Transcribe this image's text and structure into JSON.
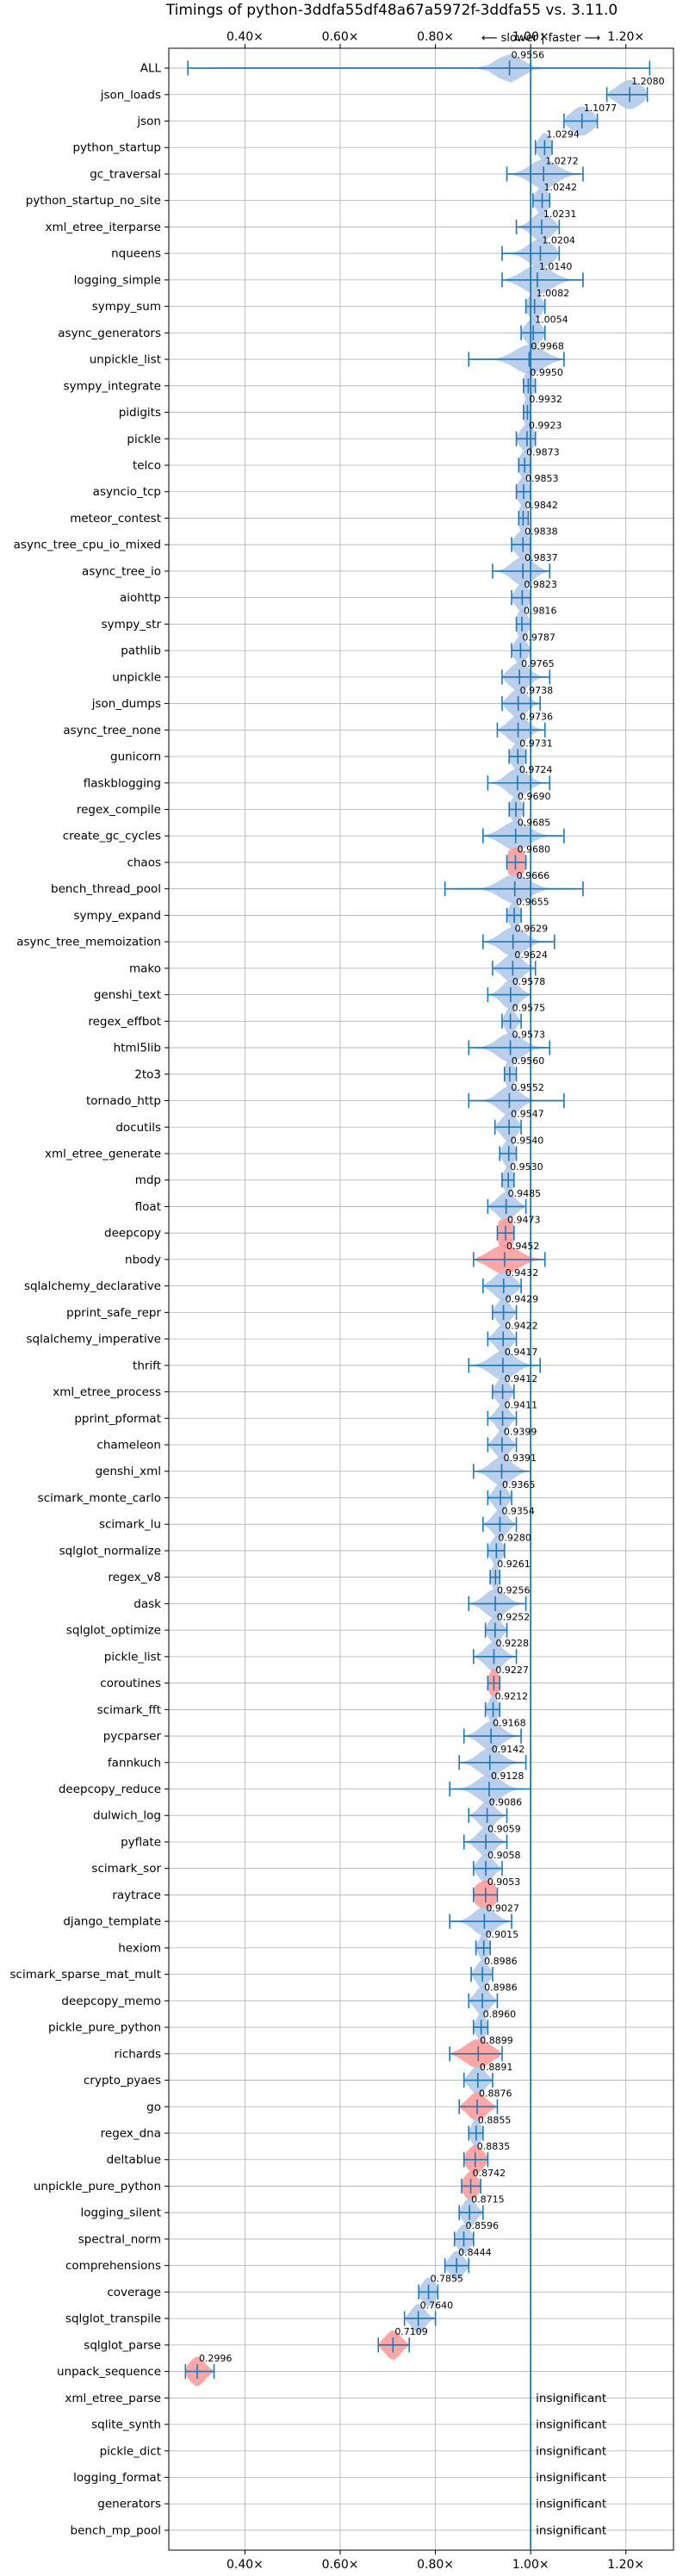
{
  "chart_data": {
    "type": "violin",
    "title": "Timings of python-3ddfa55df48a67a5972f-3ddfa55 vs. 3.11.0",
    "direction_label": "⟵ slower | faster ⟶",
    "xlim": [
      0.24,
      1.3
    ],
    "x_ticks": [
      {
        "value": 0.4,
        "label": "0.40×"
      },
      {
        "value": 0.6,
        "label": "0.60×"
      },
      {
        "value": 0.8,
        "label": "0.80×"
      },
      {
        "value": 1.0,
        "label": "1.00×"
      },
      {
        "value": 1.2,
        "label": "1.20×"
      }
    ],
    "reference_line": 1.0,
    "grid": true,
    "colors": {
      "normal": "#1f77b4",
      "normal_fill": "#aec7e8",
      "flagged_fill": "#ff9896",
      "grid": "#b0b0b0"
    },
    "insignificant_text": "insignificant",
    "benchmarks": [
      {
        "name": "ALL",
        "value": 0.9556,
        "label": "0.9556",
        "min": 0.28,
        "max": 1.25,
        "spread": 0.025,
        "flagged": false
      },
      {
        "name": "json_loads",
        "value": 1.208,
        "label": "1.2080",
        "min": 1.16,
        "max": 1.245,
        "spread": 0.025,
        "flagged": false
      },
      {
        "name": "json",
        "value": 1.1077,
        "label": "1.1077",
        "min": 1.07,
        "max": 1.14,
        "spread": 0.022,
        "flagged": false
      },
      {
        "name": "python_startup",
        "value": 1.0294,
        "label": "1.0294",
        "min": 1.01,
        "max": 1.045,
        "spread": 0.012,
        "flagged": false
      },
      {
        "name": "gc_traversal",
        "value": 1.0272,
        "label": "1.0272",
        "min": 0.95,
        "max": 1.11,
        "spread": 0.028,
        "flagged": false
      },
      {
        "name": "python_startup_no_site",
        "value": 1.0242,
        "label": "1.0242",
        "min": 1.005,
        "max": 1.04,
        "spread": 0.012,
        "flagged": false
      },
      {
        "name": "xml_etree_iterparse",
        "value": 1.0231,
        "label": "1.0231",
        "min": 0.97,
        "max": 1.06,
        "spread": 0.02,
        "flagged": false
      },
      {
        "name": "nqueens",
        "value": 1.0204,
        "label": "1.0204",
        "min": 0.94,
        "max": 1.06,
        "spread": 0.025,
        "flagged": false
      },
      {
        "name": "logging_simple",
        "value": 1.014,
        "label": "1.0140",
        "min": 0.94,
        "max": 1.11,
        "spread": 0.03,
        "flagged": false
      },
      {
        "name": "sympy_sum",
        "value": 1.0082,
        "label": "1.0082",
        "min": 0.99,
        "max": 1.03,
        "spread": 0.013,
        "flagged": false
      },
      {
        "name": "async_generators",
        "value": 1.0054,
        "label": "1.0054",
        "min": 0.98,
        "max": 1.03,
        "spread": 0.015,
        "flagged": false
      },
      {
        "name": "unpickle_list",
        "value": 0.9968,
        "label": "0.9968",
        "min": 0.87,
        "max": 1.07,
        "spread": 0.03,
        "flagged": false
      },
      {
        "name": "sympy_integrate",
        "value": 0.995,
        "label": "0.9950",
        "min": 0.985,
        "max": 1.01,
        "spread": 0.01,
        "flagged": false
      },
      {
        "name": "pidigits",
        "value": 0.9932,
        "label": "0.9932",
        "min": 0.985,
        "max": 1.0,
        "spread": 0.008,
        "flagged": false
      },
      {
        "name": "pickle",
        "value": 0.9923,
        "label": "0.9923",
        "min": 0.97,
        "max": 1.01,
        "spread": 0.013,
        "flagged": false
      },
      {
        "name": "telco",
        "value": 0.9873,
        "label": "0.9873",
        "min": 0.975,
        "max": 1.0,
        "spread": 0.01,
        "flagged": false
      },
      {
        "name": "asyncio_tcp",
        "value": 0.9853,
        "label": "0.9853",
        "min": 0.97,
        "max": 1.0,
        "spread": 0.012,
        "flagged": false
      },
      {
        "name": "meteor_contest",
        "value": 0.9842,
        "label": "0.9842",
        "min": 0.975,
        "max": 0.995,
        "spread": 0.009,
        "flagged": false
      },
      {
        "name": "async_tree_cpu_io_mixed",
        "value": 0.9838,
        "label": "0.9838",
        "min": 0.96,
        "max": 1.0,
        "spread": 0.015,
        "flagged": false
      },
      {
        "name": "async_tree_io",
        "value": 0.9837,
        "label": "0.9837",
        "min": 0.92,
        "max": 1.04,
        "spread": 0.022,
        "flagged": false
      },
      {
        "name": "aiohttp",
        "value": 0.9823,
        "label": "0.9823",
        "min": 0.96,
        "max": 1.0,
        "spread": 0.013,
        "flagged": false
      },
      {
        "name": "sympy_str",
        "value": 0.9816,
        "label": "0.9816",
        "min": 0.97,
        "max": 1.0,
        "spread": 0.011,
        "flagged": false
      },
      {
        "name": "pathlib",
        "value": 0.9787,
        "label": "0.9787",
        "min": 0.96,
        "max": 1.0,
        "spread": 0.012,
        "flagged": false
      },
      {
        "name": "unpickle",
        "value": 0.9765,
        "label": "0.9765",
        "min": 0.94,
        "max": 1.04,
        "spread": 0.02,
        "flagged": false
      },
      {
        "name": "json_dumps",
        "value": 0.9738,
        "label": "0.9738",
        "min": 0.94,
        "max": 1.02,
        "spread": 0.018,
        "flagged": false
      },
      {
        "name": "async_tree_none",
        "value": 0.9736,
        "label": "0.9736",
        "min": 0.93,
        "max": 1.03,
        "spread": 0.02,
        "flagged": false
      },
      {
        "name": "gunicorn",
        "value": 0.9731,
        "label": "0.9731",
        "min": 0.955,
        "max": 0.99,
        "spread": 0.012,
        "flagged": false
      },
      {
        "name": "flaskblogging",
        "value": 0.9724,
        "label": "0.9724",
        "min": 0.91,
        "max": 1.04,
        "spread": 0.022,
        "flagged": false
      },
      {
        "name": "regex_compile",
        "value": 0.969,
        "label": "0.9690",
        "min": 0.955,
        "max": 0.985,
        "spread": 0.01,
        "flagged": false
      },
      {
        "name": "create_gc_cycles",
        "value": 0.9685,
        "label": "0.9685",
        "min": 0.9,
        "max": 1.07,
        "spread": 0.028,
        "flagged": false
      },
      {
        "name": "chaos",
        "value": 0.968,
        "label": "0.9680",
        "min": 0.95,
        "max": 0.99,
        "spread": 0.022,
        "flagged": true
      },
      {
        "name": "bench_thread_pool",
        "value": 0.9666,
        "label": "0.9666",
        "min": 0.82,
        "max": 1.11,
        "spread": 0.03,
        "flagged": false
      },
      {
        "name": "sympy_expand",
        "value": 0.9655,
        "label": "0.9655",
        "min": 0.95,
        "max": 0.98,
        "spread": 0.01,
        "flagged": false
      },
      {
        "name": "async_tree_memoization",
        "value": 0.9629,
        "label": "0.9629",
        "min": 0.9,
        "max": 1.05,
        "spread": 0.025,
        "flagged": false
      },
      {
        "name": "mako",
        "value": 0.9624,
        "label": "0.9624",
        "min": 0.92,
        "max": 1.01,
        "spread": 0.02,
        "flagged": false
      },
      {
        "name": "genshi_text",
        "value": 0.9578,
        "label": "0.9578",
        "min": 0.91,
        "max": 1.0,
        "spread": 0.018,
        "flagged": false
      },
      {
        "name": "regex_effbot",
        "value": 0.9575,
        "label": "0.9575",
        "min": 0.94,
        "max": 0.98,
        "spread": 0.01,
        "flagged": false
      },
      {
        "name": "html5lib",
        "value": 0.9573,
        "label": "0.9573",
        "min": 0.87,
        "max": 1.04,
        "spread": 0.026,
        "flagged": false
      },
      {
        "name": "2to3",
        "value": 0.956,
        "label": "0.9560",
        "min": 0.945,
        "max": 0.97,
        "spread": 0.009,
        "flagged": false
      },
      {
        "name": "tornado_http",
        "value": 0.9552,
        "label": "0.9552",
        "min": 0.87,
        "max": 1.07,
        "spread": 0.022,
        "flagged": false
      },
      {
        "name": "docutils",
        "value": 0.9547,
        "label": "0.9547",
        "min": 0.925,
        "max": 0.98,
        "spread": 0.015,
        "flagged": false
      },
      {
        "name": "xml_etree_generate",
        "value": 0.954,
        "label": "0.9540",
        "min": 0.935,
        "max": 0.97,
        "spread": 0.011,
        "flagged": false
      },
      {
        "name": "mdp",
        "value": 0.953,
        "label": "0.9530",
        "min": 0.94,
        "max": 0.965,
        "spread": 0.009,
        "flagged": false
      },
      {
        "name": "float",
        "value": 0.9485,
        "label": "0.9485",
        "min": 0.91,
        "max": 0.99,
        "spread": 0.018,
        "flagged": false
      },
      {
        "name": "deepcopy",
        "value": 0.9473,
        "label": "0.9473",
        "min": 0.93,
        "max": 0.965,
        "spread": 0.022,
        "flagged": true
      },
      {
        "name": "nbody",
        "value": 0.9452,
        "label": "0.9452",
        "min": 0.88,
        "max": 1.03,
        "spread": 0.03,
        "flagged": true
      },
      {
        "name": "sqlalchemy_declarative",
        "value": 0.9432,
        "label": "0.9432",
        "min": 0.9,
        "max": 0.98,
        "spread": 0.02,
        "flagged": false
      },
      {
        "name": "pprint_safe_repr",
        "value": 0.9429,
        "label": "0.9429",
        "min": 0.92,
        "max": 0.97,
        "spread": 0.013,
        "flagged": false
      },
      {
        "name": "sqlalchemy_imperative",
        "value": 0.9422,
        "label": "0.9422",
        "min": 0.91,
        "max": 0.97,
        "spread": 0.015,
        "flagged": false
      },
      {
        "name": "thrift",
        "value": 0.9417,
        "label": "0.9417",
        "min": 0.87,
        "max": 1.02,
        "spread": 0.025,
        "flagged": false
      },
      {
        "name": "xml_etree_process",
        "value": 0.9412,
        "label": "0.9412",
        "min": 0.92,
        "max": 0.965,
        "spread": 0.013,
        "flagged": false
      },
      {
        "name": "pprint_pformat",
        "value": 0.9411,
        "label": "0.9411",
        "min": 0.91,
        "max": 0.97,
        "spread": 0.013,
        "flagged": false
      },
      {
        "name": "chameleon",
        "value": 0.9399,
        "label": "0.9399",
        "min": 0.91,
        "max": 0.97,
        "spread": 0.014,
        "flagged": false
      },
      {
        "name": "genshi_xml",
        "value": 0.9391,
        "label": "0.9391",
        "min": 0.88,
        "max": 1.0,
        "spread": 0.022,
        "flagged": false
      },
      {
        "name": "scimark_monte_carlo",
        "value": 0.9365,
        "label": "0.9365",
        "min": 0.91,
        "max": 0.96,
        "spread": 0.013,
        "flagged": false
      },
      {
        "name": "scimark_lu",
        "value": 0.9354,
        "label": "0.9354",
        "min": 0.9,
        "max": 0.97,
        "spread": 0.015,
        "flagged": false
      },
      {
        "name": "sqlglot_normalize",
        "value": 0.928,
        "label": "0.9280",
        "min": 0.91,
        "max": 0.945,
        "spread": 0.011,
        "flagged": false
      },
      {
        "name": "regex_v8",
        "value": 0.9261,
        "label": "0.9261",
        "min": 0.915,
        "max": 0.935,
        "spread": 0.007,
        "flagged": false
      },
      {
        "name": "dask",
        "value": 0.9256,
        "label": "0.9256",
        "min": 0.87,
        "max": 0.99,
        "spread": 0.022,
        "flagged": false
      },
      {
        "name": "sqlglot_optimize",
        "value": 0.9252,
        "label": "0.9252",
        "min": 0.905,
        "max": 0.95,
        "spread": 0.012,
        "flagged": false
      },
      {
        "name": "pickle_list",
        "value": 0.9228,
        "label": "0.9228",
        "min": 0.88,
        "max": 0.97,
        "spread": 0.018,
        "flagged": false
      },
      {
        "name": "coroutines",
        "value": 0.9227,
        "label": "0.9227",
        "min": 0.91,
        "max": 0.935,
        "spread": 0.01,
        "flagged": true
      },
      {
        "name": "scimark_fft",
        "value": 0.9212,
        "label": "0.9212",
        "min": 0.905,
        "max": 0.935,
        "spread": 0.009,
        "flagged": false
      },
      {
        "name": "pycparser",
        "value": 0.9168,
        "label": "0.9168",
        "min": 0.86,
        "max": 0.98,
        "spread": 0.022,
        "flagged": false
      },
      {
        "name": "fannkuch",
        "value": 0.9142,
        "label": "0.9142",
        "min": 0.85,
        "max": 0.99,
        "spread": 0.024,
        "flagged": false
      },
      {
        "name": "deepcopy_reduce",
        "value": 0.9128,
        "label": "0.9128",
        "min": 0.83,
        "max": 1.0,
        "spread": 0.025,
        "flagged": false
      },
      {
        "name": "dulwich_log",
        "value": 0.9086,
        "label": "0.9086",
        "min": 0.87,
        "max": 0.95,
        "spread": 0.016,
        "flagged": false
      },
      {
        "name": "pyflate",
        "value": 0.9059,
        "label": "0.9059",
        "min": 0.86,
        "max": 0.95,
        "spread": 0.017,
        "flagged": false
      },
      {
        "name": "scimark_sor",
        "value": 0.9058,
        "label": "0.9058",
        "min": 0.88,
        "max": 0.94,
        "spread": 0.015,
        "flagged": false
      },
      {
        "name": "raytrace",
        "value": 0.9053,
        "label": "0.9053",
        "min": 0.88,
        "max": 0.93,
        "spread": 0.022,
        "flagged": true
      },
      {
        "name": "django_template",
        "value": 0.9027,
        "label": "0.9027",
        "min": 0.83,
        "max": 0.96,
        "spread": 0.022,
        "flagged": false
      },
      {
        "name": "hexiom",
        "value": 0.9015,
        "label": "0.9015",
        "min": 0.885,
        "max": 0.915,
        "spread": 0.009,
        "flagged": false
      },
      {
        "name": "scimark_sparse_mat_mult",
        "value": 0.8986,
        "label": "0.8986",
        "min": 0.875,
        "max": 0.92,
        "spread": 0.012,
        "flagged": false
      },
      {
        "name": "deepcopy_memo",
        "value": 0.8986,
        "label": "0.8986",
        "min": 0.87,
        "max": 0.93,
        "spread": 0.014,
        "flagged": false
      },
      {
        "name": "pickle_pure_python",
        "value": 0.896,
        "label": "0.8960",
        "min": 0.88,
        "max": 0.91,
        "spread": 0.009,
        "flagged": false
      },
      {
        "name": "richards",
        "value": 0.8899,
        "label": "0.8899",
        "min": 0.83,
        "max": 0.94,
        "spread": 0.026,
        "flagged": true
      },
      {
        "name": "crypto_pyaes",
        "value": 0.8891,
        "label": "0.8891",
        "min": 0.86,
        "max": 0.92,
        "spread": 0.015,
        "flagged": false
      },
      {
        "name": "go",
        "value": 0.8876,
        "label": "0.8876",
        "min": 0.85,
        "max": 0.93,
        "spread": 0.018,
        "flagged": true
      },
      {
        "name": "regex_dna",
        "value": 0.8855,
        "label": "0.8855",
        "min": 0.87,
        "max": 0.9,
        "spread": 0.009,
        "flagged": false
      },
      {
        "name": "deltablue",
        "value": 0.8835,
        "label": "0.8835",
        "min": 0.86,
        "max": 0.91,
        "spread": 0.016,
        "flagged": true
      },
      {
        "name": "unpickle_pure_python",
        "value": 0.8742,
        "label": "0.8742",
        "min": 0.855,
        "max": 0.895,
        "spread": 0.014,
        "flagged": true
      },
      {
        "name": "logging_silent",
        "value": 0.8715,
        "label": "0.8715",
        "min": 0.85,
        "max": 0.9,
        "spread": 0.013,
        "flagged": false
      },
      {
        "name": "spectral_norm",
        "value": 0.8596,
        "label": "0.8596",
        "min": 0.84,
        "max": 0.88,
        "spread": 0.013,
        "flagged": false
      },
      {
        "name": "comprehensions",
        "value": 0.8444,
        "label": "0.8444",
        "min": 0.82,
        "max": 0.87,
        "spread": 0.014,
        "flagged": false
      },
      {
        "name": "coverage",
        "value": 0.7855,
        "label": "0.7855",
        "min": 0.765,
        "max": 0.805,
        "spread": 0.013,
        "flagged": false
      },
      {
        "name": "sqlglot_transpile",
        "value": 0.764,
        "label": "0.7640",
        "min": 0.735,
        "max": 0.8,
        "spread": 0.014,
        "flagged": false
      },
      {
        "name": "sqlglot_parse",
        "value": 0.7109,
        "label": "0.7109",
        "min": 0.68,
        "max": 0.745,
        "spread": 0.016,
        "flagged": true
      },
      {
        "name": "unpack_sequence",
        "value": 0.2996,
        "label": "0.2996",
        "min": 0.275,
        "max": 0.335,
        "spread": 0.016,
        "flagged": true
      },
      {
        "name": "xml_etree_parse",
        "insignificant": true
      },
      {
        "name": "sqlite_synth",
        "insignificant": true
      },
      {
        "name": "pickle_dict",
        "insignificant": true
      },
      {
        "name": "logging_format",
        "insignificant": true
      },
      {
        "name": "generators",
        "insignificant": true
      },
      {
        "name": "bench_mp_pool",
        "insignificant": true
      }
    ]
  }
}
